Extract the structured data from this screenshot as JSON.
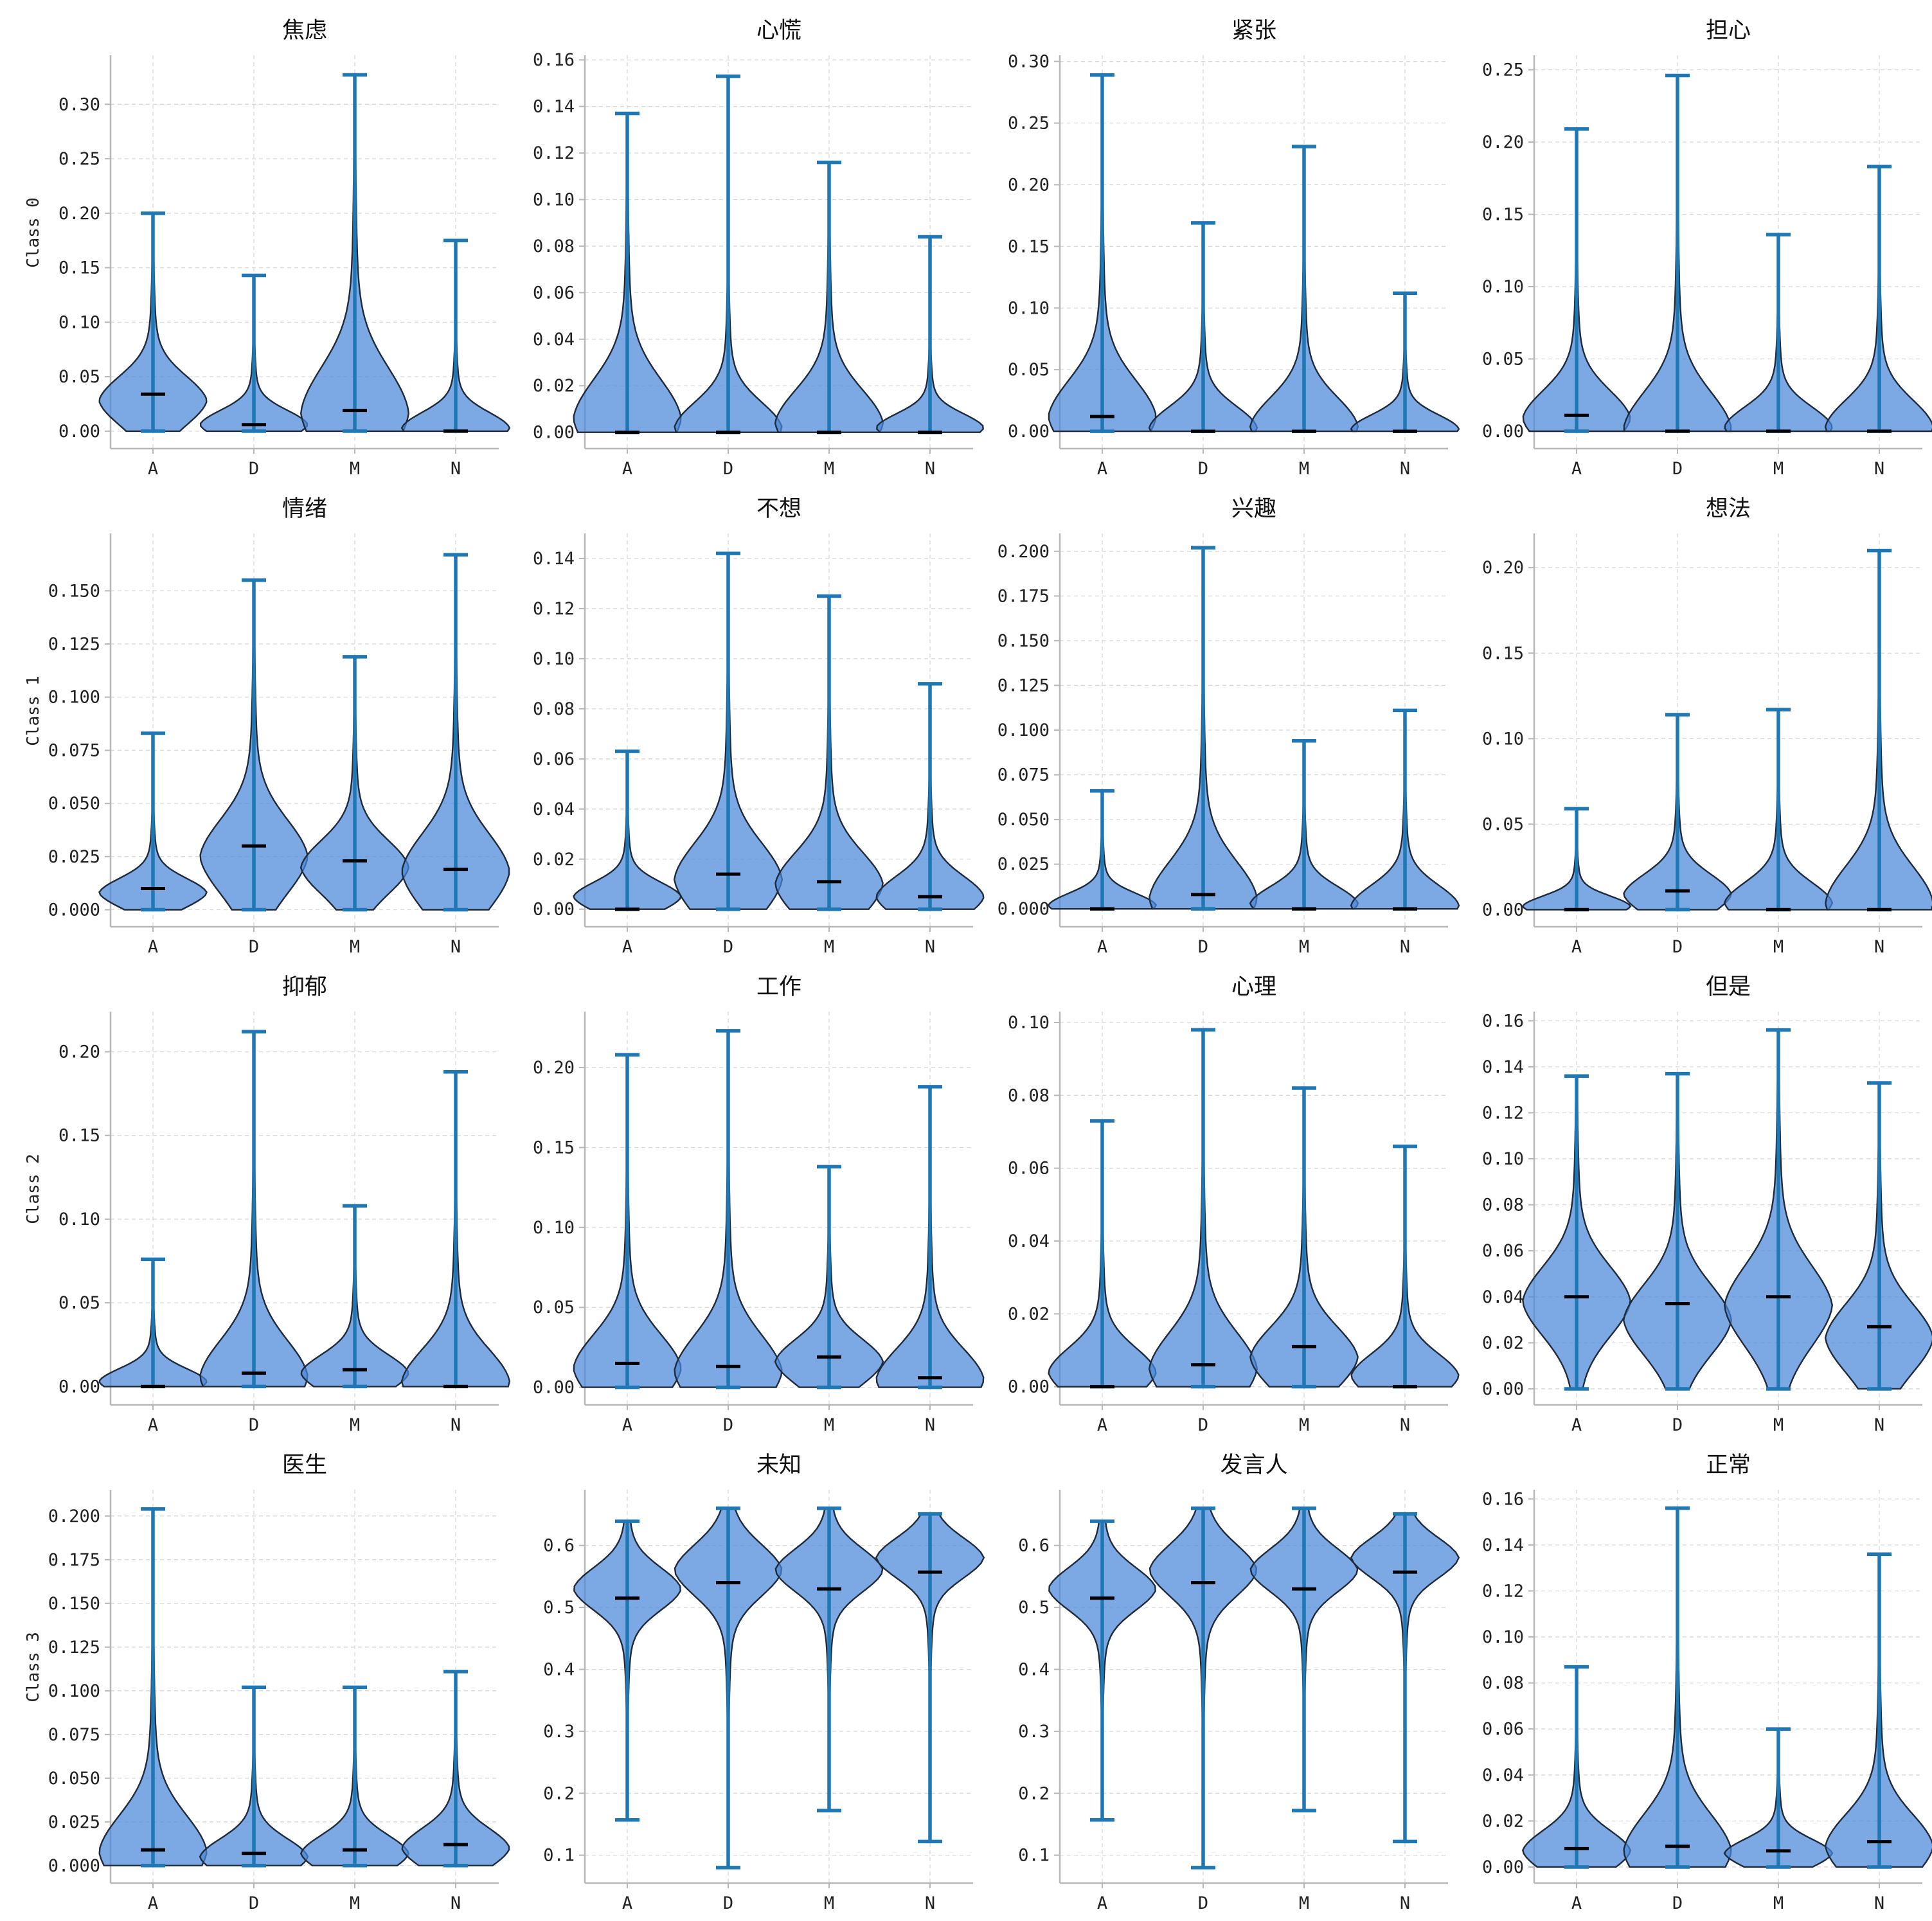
{
  "figure": {
    "row_labels": [
      "Class 0",
      "Class 1",
      "Class 2",
      "Class 3"
    ]
  },
  "chart_data": [
    {
      "type": "violin",
      "row": 0,
      "col": 0,
      "title": "焦虑",
      "ylabel": "Class 0",
      "categories": [
        "A",
        "D",
        "M",
        "N"
      ],
      "ylim": [
        -0.016,
        0.345
      ],
      "yticks": [
        0,
        0.05,
        0.1,
        0.15,
        0.2,
        0.25,
        0.3
      ],
      "ytick_labels": [
        "0.00",
        "0.05",
        "0.10",
        "0.15",
        "0.20",
        "0.25",
        "0.30"
      ],
      "series": [
        {
          "min": 0,
          "max": 0.2,
          "median": 0.034,
          "mode": 0.028,
          "spread": 0.55
        },
        {
          "min": 0,
          "max": 0.143,
          "median": 0.006,
          "mode": 0.006,
          "spread": 0.45
        },
        {
          "min": 0,
          "max": 0.327,
          "median": 0.019,
          "mode": 0.017,
          "spread": 0.62
        },
        {
          "min": 0,
          "max": 0.175,
          "median": 0.0,
          "mode": 0.003,
          "spread": 0.4
        }
      ]
    },
    {
      "type": "violin",
      "row": 0,
      "col": 1,
      "title": "心慌",
      "ylabel": "",
      "categories": [
        "A",
        "D",
        "M",
        "N"
      ],
      "ylim": [
        -0.007,
        0.162
      ],
      "yticks": [
        0,
        0.02,
        0.04,
        0.06,
        0.08,
        0.1,
        0.12,
        0.14,
        0.16
      ],
      "ytick_labels": [
        "0.00",
        "0.02",
        "0.04",
        "0.06",
        "0.08",
        "0.10",
        "0.12",
        "0.14",
        "0.16"
      ],
      "series": [
        {
          "min": 0,
          "max": 0.137,
          "median": 0.0,
          "mode": 0.006,
          "spread": 0.6
        },
        {
          "min": 0,
          "max": 0.153,
          "median": 0.0,
          "mode": 0.002,
          "spread": 0.35
        },
        {
          "min": 0,
          "max": 0.116,
          "median": 0.0,
          "mode": 0.004,
          "spread": 0.6
        },
        {
          "min": 0,
          "max": 0.084,
          "median": 0.0,
          "mode": 0.002,
          "spread": 0.35
        }
      ]
    },
    {
      "type": "violin",
      "row": 0,
      "col": 2,
      "title": "紧张",
      "ylabel": "",
      "categories": [
        "A",
        "D",
        "M",
        "N"
      ],
      "ylim": [
        -0.014,
        0.305
      ],
      "yticks": [
        0,
        0.05,
        0.1,
        0.15,
        0.2,
        0.25,
        0.3
      ],
      "ytick_labels": [
        "0.00",
        "0.05",
        "0.10",
        "0.15",
        "0.20",
        "0.25",
        "0.30"
      ],
      "series": [
        {
          "min": 0,
          "max": 0.289,
          "median": 0.012,
          "mode": 0.012,
          "spread": 0.5
        },
        {
          "min": 0,
          "max": 0.169,
          "median": 0.0,
          "mode": 0.003,
          "spread": 0.5
        },
        {
          "min": 0,
          "max": 0.231,
          "median": 0.0,
          "mode": 0.004,
          "spread": 0.5
        },
        {
          "min": 0,
          "max": 0.112,
          "median": 0.0,
          "mode": 0.002,
          "spread": 0.5
        }
      ]
    },
    {
      "type": "violin",
      "row": 0,
      "col": 3,
      "title": "担心",
      "ylabel": "",
      "categories": [
        "A",
        "D",
        "M",
        "N"
      ],
      "ylim": [
        -0.012,
        0.26
      ],
      "yticks": [
        0,
        0.05,
        0.1,
        0.15,
        0.2,
        0.25
      ],
      "ytick_labels": [
        "0.00",
        "0.05",
        "0.10",
        "0.15",
        "0.20",
        "0.25"
      ],
      "series": [
        {
          "min": 0,
          "max": 0.209,
          "median": 0.011,
          "mode": 0.009,
          "spread": 0.45
        },
        {
          "min": 0,
          "max": 0.246,
          "median": 0.0,
          "mode": 0.002,
          "spread": 0.5
        },
        {
          "min": 0,
          "max": 0.136,
          "median": 0.0,
          "mode": 0.003,
          "spread": 0.5
        },
        {
          "min": 0,
          "max": 0.183,
          "median": 0.0,
          "mode": 0.003,
          "spread": 0.5
        }
      ]
    },
    {
      "type": "violin",
      "row": 1,
      "col": 0,
      "title": "情绪",
      "ylabel": "Class 1",
      "categories": [
        "A",
        "D",
        "M",
        "N"
      ],
      "ylim": [
        -0.008,
        0.177
      ],
      "yticks": [
        0,
        0.025,
        0.05,
        0.075,
        0.1,
        0.125,
        0.15
      ],
      "ytick_labels": [
        "0.000",
        "0.025",
        "0.050",
        "0.075",
        "0.100",
        "0.125",
        "0.150"
      ],
      "series": [
        {
          "min": 0,
          "max": 0.083,
          "median": 0.01,
          "mode": 0.008,
          "spread": 0.4
        },
        {
          "min": 0,
          "max": 0.155,
          "median": 0.03,
          "mode": 0.025,
          "spread": 0.55
        },
        {
          "min": 0,
          "max": 0.119,
          "median": 0.023,
          "mode": 0.02,
          "spread": 0.52
        },
        {
          "min": 0,
          "max": 0.167,
          "median": 0.019,
          "mode": 0.018,
          "spread": 0.52
        }
      ]
    },
    {
      "type": "violin",
      "row": 1,
      "col": 1,
      "title": "不想",
      "ylabel": "",
      "categories": [
        "A",
        "D",
        "M",
        "N"
      ],
      "ylim": [
        -0.007,
        0.15
      ],
      "yticks": [
        0,
        0.02,
        0.04,
        0.06,
        0.08,
        0.1,
        0.12,
        0.14
      ],
      "ytick_labels": [
        "0.00",
        "0.02",
        "0.04",
        "0.06",
        "0.08",
        "0.10",
        "0.12",
        "0.14"
      ],
      "series": [
        {
          "min": 0,
          "max": 0.063,
          "median": 0.0,
          "mode": 0.005,
          "spread": 0.45
        },
        {
          "min": 0,
          "max": 0.142,
          "median": 0.014,
          "mode": 0.012,
          "spread": 0.5
        },
        {
          "min": 0,
          "max": 0.125,
          "median": 0.011,
          "mode": 0.01,
          "spread": 0.5
        },
        {
          "min": 0,
          "max": 0.09,
          "median": 0.005,
          "mode": 0.005,
          "spread": 0.45
        }
      ]
    },
    {
      "type": "violin",
      "row": 1,
      "col": 2,
      "title": "兴趣",
      "ylabel": "",
      "categories": [
        "A",
        "D",
        "M",
        "N"
      ],
      "ylim": [
        -0.01,
        0.21
      ],
      "yticks": [
        0,
        0.025,
        0.05,
        0.075,
        0.1,
        0.125,
        0.15,
        0.175,
        0.2
      ],
      "ytick_labels": [
        "0.000",
        "0.025",
        "0.050",
        "0.075",
        "0.100",
        "0.125",
        "0.150",
        "0.175",
        "0.200"
      ],
      "series": [
        {
          "min": 0,
          "max": 0.066,
          "median": 0.0,
          "mode": 0.002,
          "spread": 0.5
        },
        {
          "min": 0,
          "max": 0.202,
          "median": 0.008,
          "mode": 0.006,
          "spread": 0.5
        },
        {
          "min": 0,
          "max": 0.094,
          "median": 0.0,
          "mode": 0.003,
          "spread": 0.5
        },
        {
          "min": 0,
          "max": 0.111,
          "median": 0.0,
          "mode": 0.002,
          "spread": 0.5
        }
      ]
    },
    {
      "type": "violin",
      "row": 1,
      "col": 3,
      "title": "想法",
      "ylabel": "",
      "categories": [
        "A",
        "D",
        "M",
        "N"
      ],
      "ylim": [
        -0.01,
        0.22
      ],
      "yticks": [
        0,
        0.05,
        0.1,
        0.15,
        0.2
      ],
      "ytick_labels": [
        "0.00",
        "0.05",
        "0.10",
        "0.15",
        "0.20"
      ],
      "series": [
        {
          "min": 0,
          "max": 0.059,
          "median": 0.0,
          "mode": 0.002,
          "spread": 0.5
        },
        {
          "min": 0,
          "max": 0.114,
          "median": 0.011,
          "mode": 0.009,
          "spread": 0.5
        },
        {
          "min": 0,
          "max": 0.117,
          "median": 0.0,
          "mode": 0.004,
          "spread": 0.5
        },
        {
          "min": 0,
          "max": 0.21,
          "median": 0.0,
          "mode": 0.004,
          "spread": 0.5
        }
      ]
    },
    {
      "type": "violin",
      "row": 2,
      "col": 0,
      "title": "抑郁",
      "ylabel": "Class 2",
      "categories": [
        "A",
        "D",
        "M",
        "N"
      ],
      "ylim": [
        -0.011,
        0.224
      ],
      "yticks": [
        0,
        0.05,
        0.1,
        0.15,
        0.2
      ],
      "ytick_labels": [
        "0.00",
        "0.05",
        "0.10",
        "0.15",
        "0.20"
      ],
      "series": [
        {
          "min": 0,
          "max": 0.076,
          "median": 0.0,
          "mode": 0.003,
          "spread": 0.5
        },
        {
          "min": 0,
          "max": 0.212,
          "median": 0.008,
          "mode": 0.006,
          "spread": 0.5
        },
        {
          "min": 0,
          "max": 0.108,
          "median": 0.01,
          "mode": 0.008,
          "spread": 0.5
        },
        {
          "min": 0,
          "max": 0.188,
          "median": 0.0,
          "mode": 0.003,
          "spread": 0.5
        }
      ]
    },
    {
      "type": "violin",
      "row": 2,
      "col": 1,
      "title": "工作",
      "ylabel": "",
      "categories": [
        "A",
        "D",
        "M",
        "N"
      ],
      "ylim": [
        -0.011,
        0.235
      ],
      "yticks": [
        0,
        0.05,
        0.1,
        0.15,
        0.2
      ],
      "ytick_labels": [
        "0.00",
        "0.05",
        "0.10",
        "0.15",
        "0.20"
      ],
      "series": [
        {
          "min": 0,
          "max": 0.208,
          "median": 0.015,
          "mode": 0.012,
          "spread": 0.5
        },
        {
          "min": 0,
          "max": 0.223,
          "median": 0.013,
          "mode": 0.01,
          "spread": 0.5
        },
        {
          "min": 0,
          "max": 0.138,
          "median": 0.019,
          "mode": 0.016,
          "spread": 0.5
        },
        {
          "min": 0,
          "max": 0.188,
          "median": 0.006,
          "mode": 0.005,
          "spread": 0.5
        }
      ]
    },
    {
      "type": "violin",
      "row": 2,
      "col": 2,
      "title": "心理",
      "ylabel": "",
      "categories": [
        "A",
        "D",
        "M",
        "N"
      ],
      "ylim": [
        -0.005,
        0.103
      ],
      "yticks": [
        0,
        0.02,
        0.04,
        0.06,
        0.08,
        0.1
      ],
      "ytick_labels": [
        "0.00",
        "0.02",
        "0.04",
        "0.06",
        "0.08",
        "0.10"
      ],
      "series": [
        {
          "min": 0,
          "max": 0.073,
          "median": 0.0,
          "mode": 0.004,
          "spread": 0.45
        },
        {
          "min": 0,
          "max": 0.098,
          "median": 0.006,
          "mode": 0.005,
          "spread": 0.5
        },
        {
          "min": 0,
          "max": 0.082,
          "median": 0.011,
          "mode": 0.008,
          "spread": 0.5
        },
        {
          "min": 0,
          "max": 0.066,
          "median": 0.0,
          "mode": 0.003,
          "spread": 0.45
        }
      ]
    },
    {
      "type": "violin",
      "row": 2,
      "col": 3,
      "title": "但是",
      "ylabel": "",
      "categories": [
        "A",
        "D",
        "M",
        "N"
      ],
      "ylim": [
        -0.007,
        0.164
      ],
      "yticks": [
        0,
        0.02,
        0.04,
        0.06,
        0.08,
        0.1,
        0.12,
        0.14,
        0.16
      ],
      "ytick_labels": [
        "0.00",
        "0.02",
        "0.04",
        "0.06",
        "0.08",
        "0.10",
        "0.12",
        "0.14",
        "0.16"
      ],
      "series": [
        {
          "min": 0,
          "max": 0.136,
          "median": 0.04,
          "mode": 0.038,
          "spread": 0.55
        },
        {
          "min": 0,
          "max": 0.137,
          "median": 0.037,
          "mode": 0.03,
          "spread": 0.55
        },
        {
          "min": 0,
          "max": 0.156,
          "median": 0.04,
          "mode": 0.036,
          "spread": 0.55
        },
        {
          "min": 0,
          "max": 0.133,
          "median": 0.027,
          "mode": 0.022,
          "spread": 0.55
        }
      ]
    },
    {
      "type": "violin",
      "row": 3,
      "col": 0,
      "title": "医生",
      "ylabel": "Class 3",
      "categories": [
        "A",
        "D",
        "M",
        "N"
      ],
      "ylim": [
        -0.01,
        0.215
      ],
      "yticks": [
        0,
        0.025,
        0.05,
        0.075,
        0.1,
        0.125,
        0.15,
        0.175,
        0.2
      ],
      "ytick_labels": [
        "0.000",
        "0.025",
        "0.050",
        "0.075",
        "0.100",
        "0.125",
        "0.150",
        "0.175",
        "0.200"
      ],
      "series": [
        {
          "min": 0,
          "max": 0.204,
          "median": 0.009,
          "mode": 0.008,
          "spread": 0.5
        },
        {
          "min": 0,
          "max": 0.102,
          "median": 0.007,
          "mode": 0.005,
          "spread": 0.5
        },
        {
          "min": 0,
          "max": 0.102,
          "median": 0.009,
          "mode": 0.007,
          "spread": 0.5
        },
        {
          "min": 0,
          "max": 0.111,
          "median": 0.012,
          "mode": 0.01,
          "spread": 0.5
        }
      ]
    },
    {
      "type": "violin",
      "row": 3,
      "col": 1,
      "title": "未知",
      "ylabel": "",
      "categories": [
        "A",
        "D",
        "M",
        "N"
      ],
      "ylim": [
        0.055,
        0.69
      ],
      "yticks": [
        0.1,
        0.2,
        0.3,
        0.4,
        0.5,
        0.6
      ],
      "ytick_labels": [
        "0.1",
        "0.2",
        "0.3",
        "0.4",
        "0.5",
        "0.6"
      ],
      "series": [
        {
          "min": 0.157,
          "max": 0.639,
          "median": 0.515,
          "mode": 0.53,
          "spread": 0.35
        },
        {
          "min": 0.08,
          "max": 0.66,
          "median": 0.54,
          "mode": 0.56,
          "spread": 0.35
        },
        {
          "min": 0.172,
          "max": 0.66,
          "median": 0.53,
          "mode": 0.56,
          "spread": 0.35
        },
        {
          "min": 0.122,
          "max": 0.651,
          "median": 0.557,
          "mode": 0.58,
          "spread": 0.3
        }
      ]
    },
    {
      "type": "violin",
      "row": 3,
      "col": 2,
      "title": "发言人",
      "ylabel": "",
      "categories": [
        "A",
        "D",
        "M",
        "N"
      ],
      "ylim": [
        0.055,
        0.69
      ],
      "yticks": [
        0.1,
        0.2,
        0.3,
        0.4,
        0.5,
        0.6
      ],
      "ytick_labels": [
        "0.1",
        "0.2",
        "0.3",
        "0.4",
        "0.5",
        "0.6"
      ],
      "series": [
        {
          "min": 0.157,
          "max": 0.639,
          "median": 0.515,
          "mode": 0.53,
          "spread": 0.35
        },
        {
          "min": 0.08,
          "max": 0.66,
          "median": 0.54,
          "mode": 0.56,
          "spread": 0.35
        },
        {
          "min": 0.172,
          "max": 0.66,
          "median": 0.53,
          "mode": 0.56,
          "spread": 0.35
        },
        {
          "min": 0.122,
          "max": 0.651,
          "median": 0.557,
          "mode": 0.58,
          "spread": 0.3
        }
      ]
    },
    {
      "type": "violin",
      "row": 3,
      "col": 3,
      "title": "正常",
      "ylabel": "",
      "categories": [
        "A",
        "D",
        "M",
        "N"
      ],
      "ylim": [
        -0.007,
        0.164
      ],
      "yticks": [
        0,
        0.02,
        0.04,
        0.06,
        0.08,
        0.1,
        0.12,
        0.14,
        0.16
      ],
      "ytick_labels": [
        "0.00",
        "0.02",
        "0.04",
        "0.06",
        "0.08",
        "0.10",
        "0.12",
        "0.14",
        "0.16"
      ],
      "series": [
        {
          "min": 0,
          "max": 0.087,
          "median": 0.008,
          "mode": 0.007,
          "spread": 0.5
        },
        {
          "min": 0,
          "max": 0.156,
          "median": 0.009,
          "mode": 0.007,
          "spread": 0.5
        },
        {
          "min": 0,
          "max": 0.06,
          "median": 0.007,
          "mode": 0.006,
          "spread": 0.5
        },
        {
          "min": 0,
          "max": 0.136,
          "median": 0.011,
          "mode": 0.009,
          "spread": 0.5
        }
      ]
    }
  ]
}
